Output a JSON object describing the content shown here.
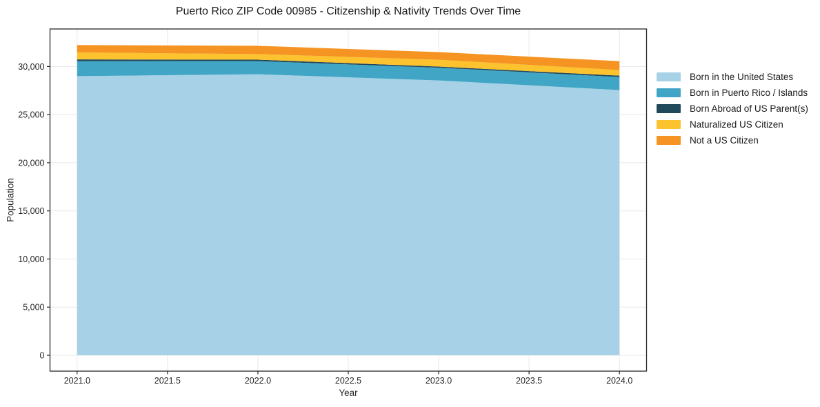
{
  "chart_data": {
    "type": "area",
    "stacked": true,
    "title": "Puerto Rico ZIP Code 00985 - Citizenship & Nativity Trends Over Time",
    "xlabel": "Year",
    "ylabel": "Population",
    "x": [
      2021.0,
      2022.0,
      2023.0,
      2024.0
    ],
    "series": [
      {
        "name": "Born in the United States",
        "color": "#a7d1e6",
        "values": [
          29000,
          29200,
          28550,
          27550
        ]
      },
      {
        "name": "Born in Puerto Rico / Islands",
        "color": "#41a6c6",
        "values": [
          1550,
          1360,
          1330,
          1360
        ]
      },
      {
        "name": "Born Abroad of US Parent(s)",
        "color": "#20495c",
        "values": [
          190,
          150,
          110,
          145
        ]
      },
      {
        "name": "Naturalized US Citizen",
        "color": "#fdc32f",
        "values": [
          720,
          580,
          715,
          575
        ]
      },
      {
        "name": "Not a US Citizen",
        "color": "#f59422",
        "values": [
          770,
          860,
          790,
          930
        ]
      }
    ],
    "xlim": [
      2020.85,
      2024.15
    ],
    "ylim": [
      -1650,
      33900
    ],
    "xticks": [
      2021.0,
      2021.5,
      2022.0,
      2022.5,
      2023.0,
      2023.5,
      2024.0
    ],
    "xtick_labels": [
      "2021.0",
      "2021.5",
      "2022.0",
      "2022.5",
      "2023.0",
      "2023.5",
      "2024.0"
    ],
    "yticks": [
      0,
      5000,
      10000,
      15000,
      20000,
      25000,
      30000
    ],
    "ytick_labels": [
      "0",
      "5,000",
      "10,000",
      "15,000",
      "20,000",
      "25,000",
      "30,000"
    ],
    "grid": true,
    "legend_position": "outside-right",
    "colors": {
      "grid": "#e8e8e8",
      "spine": "#262626",
      "tick_text": "#262626",
      "background": "#ffffff"
    }
  }
}
